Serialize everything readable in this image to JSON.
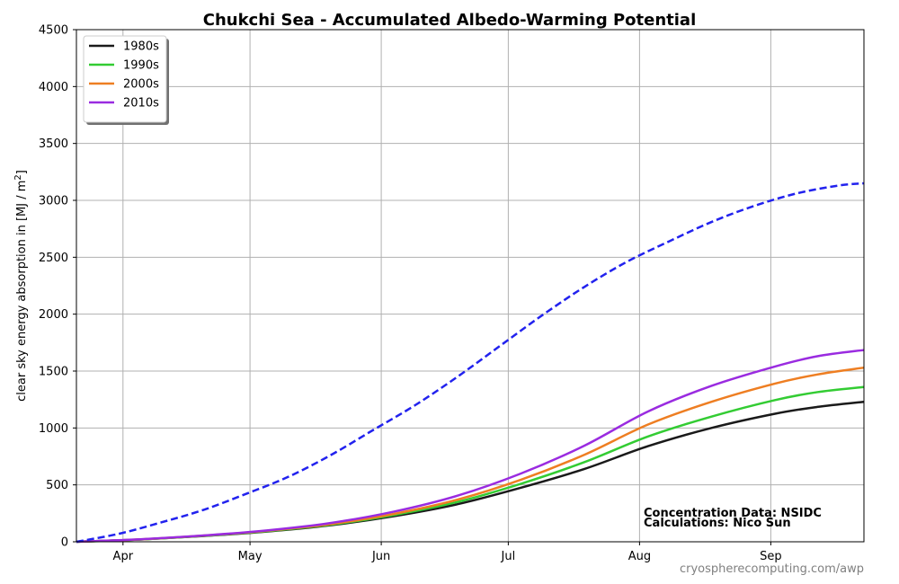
{
  "chart_data": {
    "type": "line",
    "title": "Chukchi Sea - Accumulated Albedo-Warming Potential",
    "ylabel": "clear sky energy absorption in  [MJ / m²]",
    "ylabel_prefix": "clear sky energy absorption in  [MJ / m",
    "ylabel_sup": "2",
    "ylabel_suffix": "]",
    "xlabel": "",
    "x_domain": [
      0,
      186
    ],
    "ylim": [
      0,
      4500
    ],
    "y_ticks": [
      0,
      500,
      1000,
      1500,
      2000,
      2500,
      3000,
      3500,
      4000,
      4500
    ],
    "x_ticks": [
      {
        "day": 11,
        "label": "Apr"
      },
      {
        "day": 41,
        "label": "May"
      },
      {
        "day": 72,
        "label": "Jun"
      },
      {
        "day": 102,
        "label": "Jul"
      },
      {
        "day": 133,
        "label": "Aug"
      },
      {
        "day": 164,
        "label": "Sep"
      }
    ],
    "grid": true,
    "legend_position": "top-left",
    "series": [
      {
        "name": "1980s",
        "color": "#1a1a1a",
        "dash": false,
        "in_legend": true,
        "x": [
          0,
          15,
          30,
          45,
          60,
          75,
          90,
          105,
          120,
          135,
          150,
          165,
          175,
          186
        ],
        "y": [
          0,
          20,
          50,
          90,
          145,
          225,
          330,
          475,
          640,
          840,
          1000,
          1125,
          1185,
          1230
        ]
      },
      {
        "name": "1990s",
        "color": "#33cc33",
        "dash": false,
        "in_legend": true,
        "x": [
          0,
          15,
          30,
          45,
          60,
          75,
          90,
          105,
          120,
          135,
          150,
          165,
          175,
          186
        ],
        "y": [
          0,
          20,
          52,
          93,
          150,
          235,
          350,
          510,
          700,
          925,
          1100,
          1245,
          1315,
          1360
        ]
      },
      {
        "name": "2000s",
        "color": "#ee7e22",
        "dash": false,
        "in_legend": true,
        "x": [
          0,
          15,
          30,
          45,
          60,
          75,
          90,
          105,
          120,
          135,
          150,
          165,
          175,
          186
        ],
        "y": [
          0,
          21,
          54,
          97,
          155,
          245,
          370,
          545,
          765,
          1030,
          1230,
          1390,
          1470,
          1530
        ]
      },
      {
        "name": "2010s",
        "color": "#9a2be0",
        "dash": false,
        "in_legend": true,
        "x": [
          0,
          15,
          30,
          45,
          60,
          75,
          90,
          105,
          120,
          135,
          150,
          165,
          175,
          186
        ],
        "y": [
          0,
          22,
          55,
          100,
          165,
          265,
          405,
          600,
          845,
          1145,
          1370,
          1540,
          1630,
          1685
        ]
      },
      {
        "name": "",
        "color": "#2222ee",
        "dash": true,
        "in_legend": false,
        "x": [
          0,
          10,
          20,
          30,
          40,
          50,
          60,
          70,
          80,
          90,
          100,
          110,
          120,
          130,
          140,
          150,
          160,
          170,
          180,
          186
        ],
        "y": [
          0,
          70,
          170,
          280,
          420,
          570,
          760,
          980,
          1200,
          1450,
          1720,
          1990,
          2240,
          2460,
          2640,
          2810,
          2950,
          3060,
          3130,
          3150
        ]
      }
    ],
    "annotations": [
      "Concentration Data: NSIDC",
      "Calculations: Nico Sun"
    ],
    "watermark": "cryospherecomputing.com/awp"
  }
}
